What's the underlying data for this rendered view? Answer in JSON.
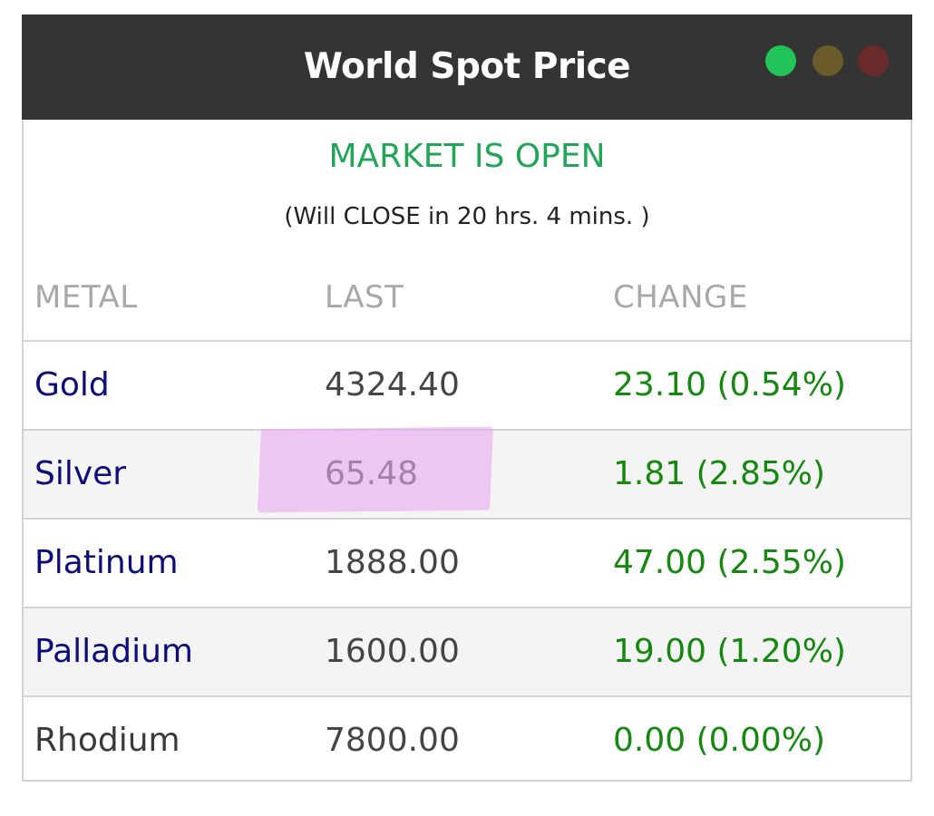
{
  "header": {
    "title": "World Spot Price",
    "window_dots": [
      {
        "name": "green-dot",
        "color": "#22c45a"
      },
      {
        "name": "olive-dot",
        "color": "#6b5a2a"
      },
      {
        "name": "red-dot",
        "color": "#6a2a2a"
      }
    ]
  },
  "market": {
    "status": "MARKET IS OPEN",
    "status_color": "#22a557",
    "close_info": "(Will CLOSE in 20 hrs. 4 mins. )"
  },
  "table": {
    "columns": [
      "METAL",
      "LAST",
      "CHANGE"
    ],
    "rows": [
      {
        "metal": "Gold",
        "last": "4324.40",
        "change": "23.10 (0.54%)",
        "metal_color": "#0c0c7a"
      },
      {
        "metal": "Silver",
        "last": "65.48",
        "change": "1.81 (2.85%)",
        "metal_color": "#0c0c7a"
      },
      {
        "metal": "Platinum",
        "last": "1888.00",
        "change": "47.00 (2.55%)",
        "metal_color": "#0c0c7a"
      },
      {
        "metal": "Palladium",
        "last": "1600.00",
        "change": "19.00 (1.20%)",
        "metal_color": "#0c0c7a"
      },
      {
        "metal": "Rhodium",
        "last": "7800.00",
        "change": "0.00 (0.00%)",
        "metal_color": "#3a3a3a"
      }
    ],
    "change_color": "#15880f"
  },
  "annotation": {
    "highlight_color": "#e9a6f0"
  }
}
